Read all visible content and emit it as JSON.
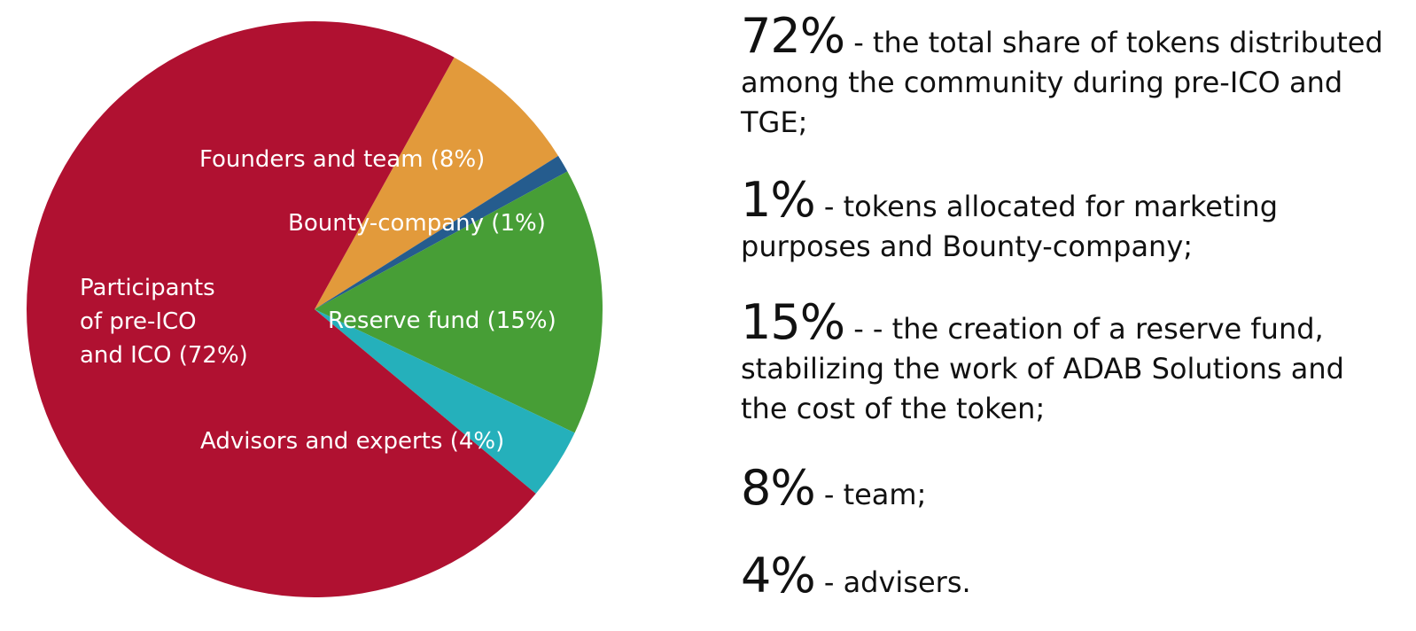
{
  "chart_data": {
    "type": "pie",
    "slices": [
      {
        "label_lines": [
          "Participants",
          "of  pre-ICO",
          "and ICO (72%)"
        ],
        "value": 72,
        "color": "#b01131"
      },
      {
        "label_lines": [
          "Founders and team (8%)"
        ],
        "value": 8,
        "color": "#e29a3b"
      },
      {
        "label_lines": [
          "Bounty-company (1%)"
        ],
        "value": 1,
        "color": "#255c8e"
      },
      {
        "label_lines": [
          "Reserve fund (15%)"
        ],
        "value": 15,
        "color": "#479e36"
      },
      {
        "label_lines": [
          "Advisors and experts (4%)"
        ],
        "value": 4,
        "color": "#25b0bb"
      }
    ]
  },
  "stats": [
    {
      "value": "72%",
      "text": " - the total share of tokens distributed among the community during pre-ICO and TGE;"
    },
    {
      "value": "1%",
      "text": " - tokens allocated for marketing purposes and Bounty-company;"
    },
    {
      "value": "15%",
      "text": " - - the creation of a reserve fund, stabilizing the work of ADAB Solutions and the cost of the token;"
    },
    {
      "value": "8%",
      "text": " - team;"
    },
    {
      "value": "4%",
      "text": " - advisers."
    }
  ]
}
